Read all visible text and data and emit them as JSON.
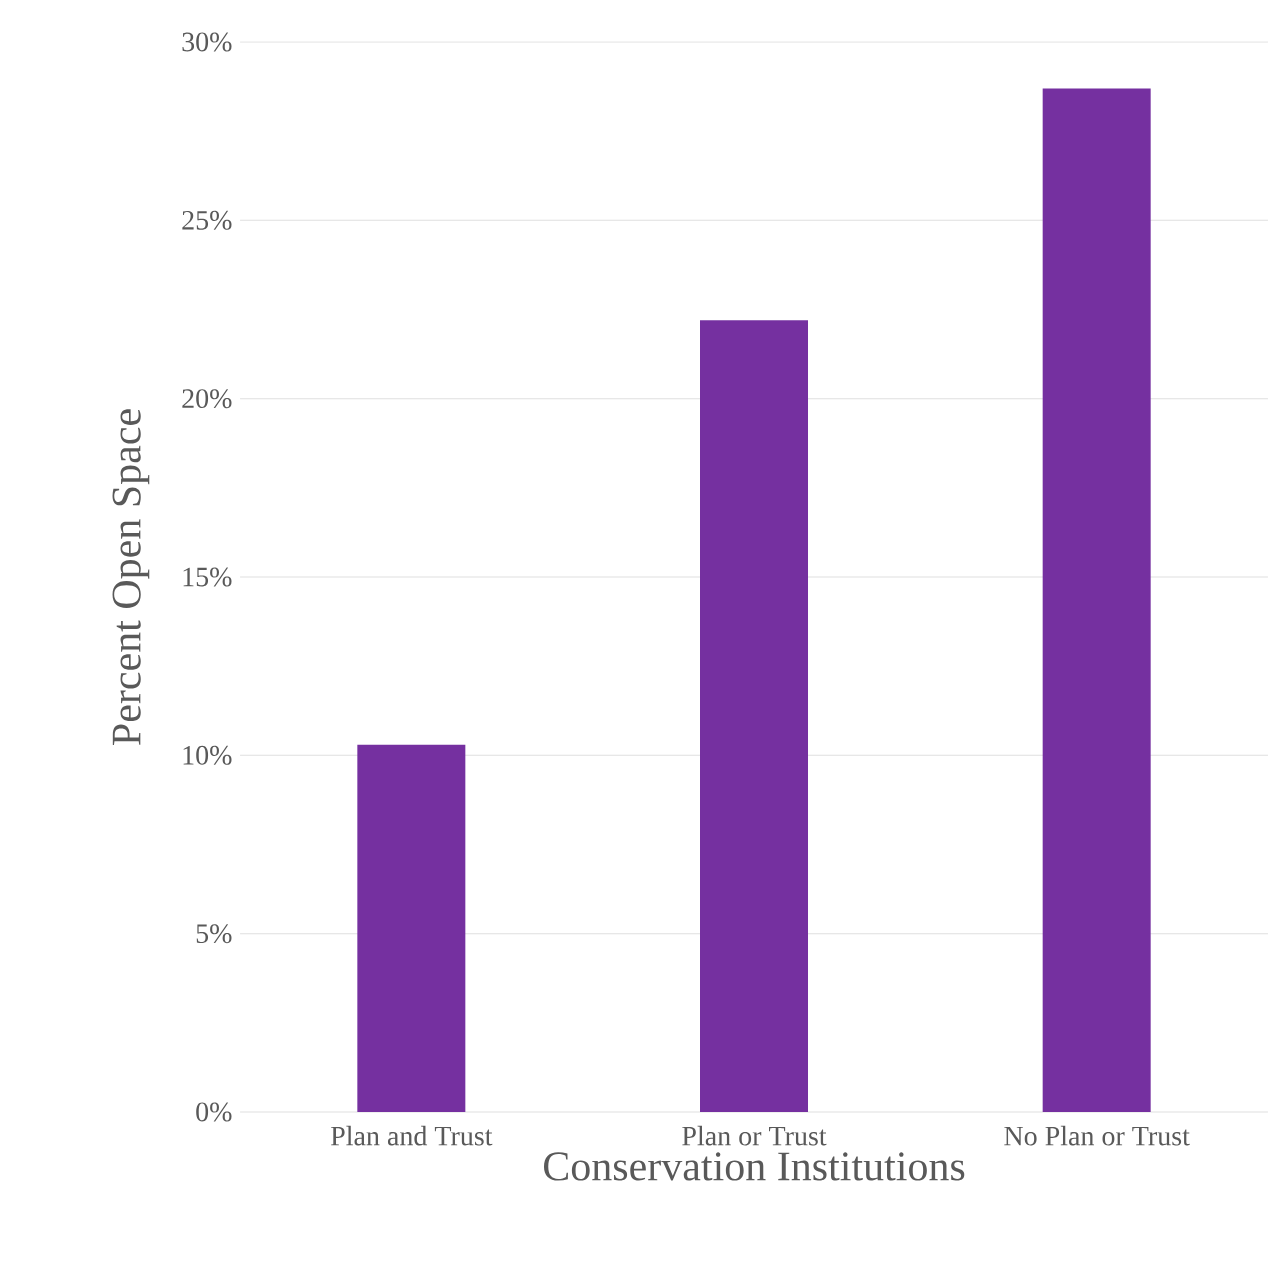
{
  "chart_data": {
    "type": "bar",
    "xlabel": "Conservation Institutions",
    "ylabel": "Percent Open Space",
    "categories": [
      "Plan and Trust",
      "Plan or Trust",
      "No Plan or Trust"
    ],
    "values": [
      10.3,
      22.2,
      28.7
    ],
    "color": "#7530a0",
    "ylim": [
      0,
      30
    ],
    "yticks": [
      {
        "value": 0,
        "label": "0%"
      },
      {
        "value": 5,
        "label": "5%"
      },
      {
        "value": 10,
        "label": "10%"
      },
      {
        "value": 15,
        "label": "15%"
      },
      {
        "value": 20,
        "label": "20%"
      },
      {
        "value": 25,
        "label": "25%"
      },
      {
        "value": 30,
        "label": "30%"
      }
    ],
    "grid": "y"
  }
}
